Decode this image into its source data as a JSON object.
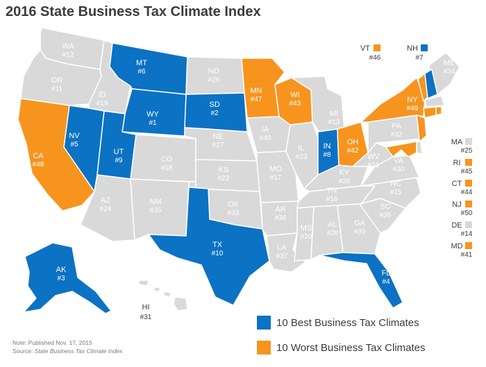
{
  "title": "2016 State Business Tax Climate Index",
  "colors": {
    "best": "#0b72c4",
    "worst": "#f7941d",
    "other": "#d9d9d9",
    "border": "#ffffff"
  },
  "states": {
    "WA": {
      "abbr": "WA",
      "rank": "#12",
      "group": "other"
    },
    "OR": {
      "abbr": "OR",
      "rank": "#11",
      "group": "other"
    },
    "CA": {
      "abbr": "CA",
      "rank": "#48",
      "group": "worst"
    },
    "ID": {
      "abbr": "ID",
      "rank": "#19",
      "group": "other"
    },
    "NV": {
      "abbr": "NV",
      "rank": "#5",
      "group": "best"
    },
    "MT": {
      "abbr": "MT",
      "rank": "#6",
      "group": "best"
    },
    "WY": {
      "abbr": "WY",
      "rank": "#1",
      "group": "best"
    },
    "UT": {
      "abbr": "UT",
      "rank": "#9",
      "group": "best"
    },
    "AZ": {
      "abbr": "AZ",
      "rank": "#24",
      "group": "other"
    },
    "CO": {
      "abbr": "CO",
      "rank": "#18",
      "group": "other"
    },
    "NM": {
      "abbr": "NM",
      "rank": "#35",
      "group": "other"
    },
    "ND": {
      "abbr": "ND",
      "rank": "#26",
      "group": "other"
    },
    "SD": {
      "abbr": "SD",
      "rank": "#2",
      "group": "best"
    },
    "NE": {
      "abbr": "NE",
      "rank": "#27",
      "group": "other"
    },
    "KS": {
      "abbr": "KS",
      "rank": "#22",
      "group": "other"
    },
    "OK": {
      "abbr": "OK",
      "rank": "#33",
      "group": "other"
    },
    "TX": {
      "abbr": "TX",
      "rank": "#10",
      "group": "best"
    },
    "MN": {
      "abbr": "MN",
      "rank": "#47",
      "group": "worst"
    },
    "IA": {
      "abbr": "IA",
      "rank": "#40",
      "group": "other"
    },
    "MO": {
      "abbr": "MO",
      "rank": "#17",
      "group": "other"
    },
    "AR": {
      "abbr": "AR",
      "rank": "#38",
      "group": "other"
    },
    "LA": {
      "abbr": "LA",
      "rank": "#37",
      "group": "other"
    },
    "WI": {
      "abbr": "WI",
      "rank": "#43",
      "group": "worst"
    },
    "IL": {
      "abbr": "IL",
      "rank": "#23",
      "group": "other"
    },
    "MI": {
      "abbr": "MI",
      "rank": "#13",
      "group": "other"
    },
    "IN": {
      "abbr": "IN",
      "rank": "#8",
      "group": "best"
    },
    "OH": {
      "abbr": "OH",
      "rank": "#42",
      "group": "worst"
    },
    "KY": {
      "abbr": "KY",
      "rank": "#28",
      "group": "other"
    },
    "TN": {
      "abbr": "TN",
      "rank": "#16",
      "group": "other"
    },
    "MS": {
      "abbr": "MS",
      "rank": "#20",
      "group": "other"
    },
    "AL": {
      "abbr": "AL",
      "rank": "#29",
      "group": "other"
    },
    "GA": {
      "abbr": "GA",
      "rank": "#39",
      "group": "other"
    },
    "FL": {
      "abbr": "FL",
      "rank": "#4",
      "group": "best"
    },
    "SC": {
      "abbr": "SC",
      "rank": "#36",
      "group": "other"
    },
    "NC": {
      "abbr": "NC",
      "rank": "#15",
      "group": "other"
    },
    "VA": {
      "abbr": "VA",
      "rank": "#30",
      "group": "other"
    },
    "WV": {
      "abbr": "WV",
      "rank": "#21",
      "group": "other"
    },
    "PA": {
      "abbr": "PA",
      "rank": "#32",
      "group": "other"
    },
    "NY": {
      "abbr": "NY",
      "rank": "#49",
      "group": "worst"
    },
    "ME": {
      "abbr": "ME",
      "rank": "#34",
      "group": "other"
    },
    "AK": {
      "abbr": "AK",
      "rank": "#3",
      "group": "best"
    },
    "HI": {
      "abbr": "HI",
      "rank": "#31",
      "group": "other"
    }
  },
  "callouts": {
    "VT": {
      "abbr": "VT",
      "rank": "#46",
      "group": "worst"
    },
    "NH": {
      "abbr": "NH",
      "rank": "#7",
      "group": "best"
    },
    "MA": {
      "abbr": "MA",
      "rank": "#25",
      "group": "other"
    },
    "RI": {
      "abbr": "RI",
      "rank": "#45",
      "group": "worst"
    },
    "CT": {
      "abbr": "CT",
      "rank": "#44",
      "group": "worst"
    },
    "NJ": {
      "abbr": "NJ",
      "rank": "#50",
      "group": "worst"
    },
    "DE": {
      "abbr": "DE",
      "rank": "#14",
      "group": "other"
    },
    "MD": {
      "abbr": "MD",
      "rank": "#41",
      "group": "worst"
    }
  },
  "legend": {
    "best": "10 Best Business Tax Climates",
    "worst": "10 Worst Business Tax Climates"
  },
  "note": {
    "published": "Note: Published Nov. 17, 2015",
    "source_prefix": "Source: ",
    "source_name": "State Business Tax Climate Index"
  }
}
